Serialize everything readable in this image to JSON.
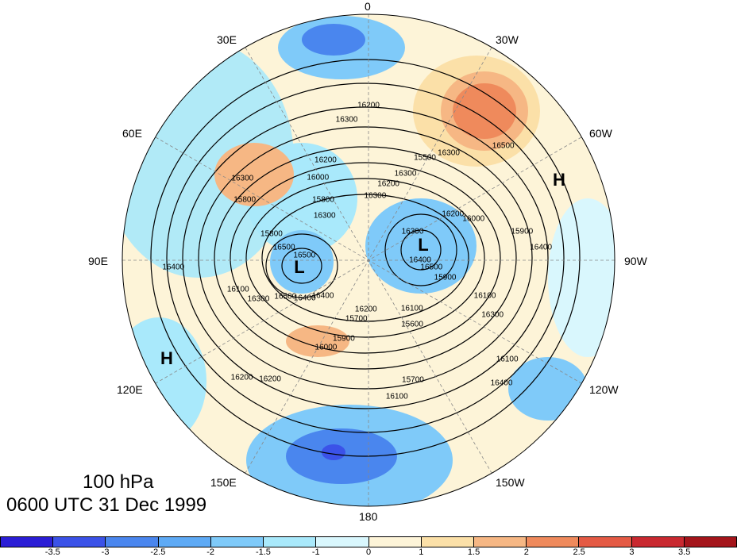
{
  "map": {
    "title": "100 hPa",
    "subtitle": "0600 UTC 31 Dec 1999",
    "longitude_labels": [
      "0",
      "30W",
      "60W",
      "90W",
      "120W",
      "150W",
      "180",
      "150E",
      "120E",
      "90E",
      "60E",
      "30E"
    ],
    "pressure_centers": [
      {
        "label": "H",
        "lon": -75
      },
      {
        "label": "H",
        "lon": 115
      },
      {
        "label": "L",
        "lon": 88
      },
      {
        "label": "L",
        "lon": -60
      }
    ],
    "contour_labels": [
      "16400",
      "16400",
      "16300",
      "16100",
      "16500",
      "16200",
      "15900",
      "16000",
      "16100",
      "16300",
      "15500",
      "15700",
      "15800",
      "15900",
      "16200",
      "16300",
      "16100",
      "16400",
      "16500",
      "16200",
      "16300",
      "16500",
      "16400",
      "16200",
      "15600",
      "15800",
      "16000",
      "16000",
      "16200",
      "16300",
      "16100",
      "16300",
      "16100",
      "16300",
      "16400",
      "16200",
      "16200",
      "16400",
      "16500",
      "16300",
      "15700",
      "15800",
      "15900",
      "16500",
      "16300"
    ]
  },
  "colorbar": {
    "ticks": [
      "-3.5",
      "-3",
      "-2.5",
      "-2",
      "-1.5",
      "-1",
      "0",
      "1",
      "1.5",
      "2",
      "2.5",
      "3",
      "3.5"
    ],
    "colors": [
      "#2b1ed6",
      "#3b52e8",
      "#4a86ee",
      "#5eaaf5",
      "#7fcaf9",
      "#a9e9fb",
      "#d9f7fd",
      "#fdf4d8",
      "#fbe0a8",
      "#f6b784",
      "#ef8a5c",
      "#e45a44",
      "#c92930",
      "#a4151b"
    ]
  }
}
